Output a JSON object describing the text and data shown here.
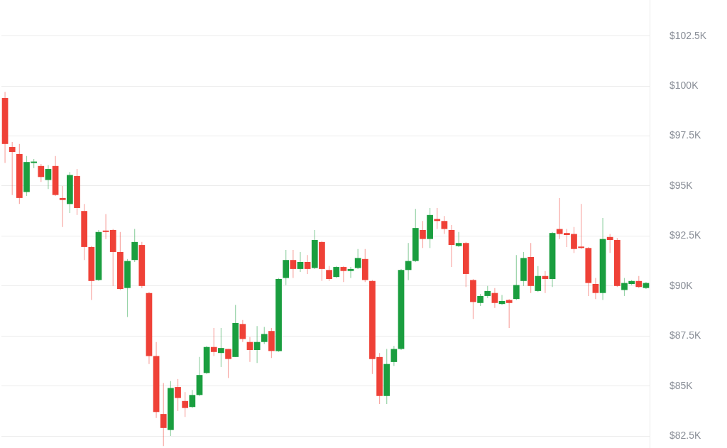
{
  "chart_data": {
    "type": "candlestick",
    "categories": [
      null,
      null,
      null,
      null,
      null,
      null,
      null,
      null,
      null,
      null,
      null,
      null,
      null,
      null,
      null,
      null,
      null,
      null,
      null,
      null,
      null,
      null,
      null,
      null,
      null,
      null,
      null,
      null,
      null,
      null,
      null,
      null,
      null,
      null,
      null,
      null,
      null,
      null,
      null,
      null,
      null,
      null,
      null,
      null,
      null,
      null,
      null,
      null,
      null,
      null,
      null,
      null,
      null,
      null,
      null,
      null,
      null,
      null,
      null,
      null,
      null,
      null,
      null,
      null,
      null,
      null,
      null,
      null,
      null,
      null,
      null,
      null,
      null,
      null,
      null,
      null,
      null,
      null,
      null,
      null,
      null,
      null,
      null,
      null,
      null,
      null,
      null,
      null,
      null,
      null
    ],
    "ohlc": [
      [
        99400,
        99700,
        96150,
        97100
      ],
      [
        96950,
        97200,
        94550,
        96700
      ],
      [
        96600,
        97100,
        94100,
        94400
      ],
      [
        94700,
        96500,
        94500,
        96200
      ],
      [
        96150,
        96350,
        95900,
        96200
      ],
      [
        96000,
        96100,
        95200,
        95450
      ],
      [
        95300,
        96050,
        94850,
        95850
      ],
      [
        96000,
        96500,
        94500,
        94550
      ],
      [
        94400,
        95000,
        92950,
        94300
      ],
      [
        94100,
        95700,
        93650,
        95550
      ],
      [
        95500,
        95850,
        93550,
        93900
      ],
      [
        93750,
        94100,
        91300,
        91950
      ],
      [
        91950,
        92000,
        89300,
        90250
      ],
      [
        90300,
        92800,
        90250,
        92700
      ],
      [
        92750,
        93600,
        92350,
        92700
      ],
      [
        92800,
        92850,
        90000,
        91700
      ],
      [
        91700,
        92700,
        89800,
        89850
      ],
      [
        89900,
        91350,
        88450,
        91250
      ],
      [
        91300,
        92850,
        91200,
        92200
      ],
      [
        92050,
        92200,
        89900,
        90000
      ],
      [
        89650,
        89700,
        86100,
        86500
      ],
      [
        86500,
        87200,
        83400,
        83700
      ],
      [
        83600,
        85150,
        82000,
        82900
      ],
      [
        82800,
        85250,
        82500,
        84900
      ],
      [
        84950,
        85350,
        83750,
        84400
      ],
      [
        84250,
        84700,
        83450,
        83900
      ],
      [
        83950,
        84800,
        83900,
        84550
      ],
      [
        84550,
        86450,
        84500,
        85550
      ],
      [
        85650,
        87000,
        85600,
        86950
      ],
      [
        86950,
        87900,
        86500,
        86700
      ],
      [
        86650,
        87900,
        85950,
        86900
      ],
      [
        86850,
        86850,
        85400,
        86350
      ],
      [
        86450,
        89050,
        86450,
        88150
      ],
      [
        88100,
        88300,
        87200,
        87350
      ],
      [
        87200,
        87450,
        86200,
        86800
      ],
      [
        86800,
        88000,
        86150,
        87200
      ],
      [
        87200,
        87950,
        87100,
        87600
      ],
      [
        87750,
        87900,
        86400,
        86750
      ],
      [
        86750,
        90400,
        86700,
        90350
      ],
      [
        90400,
        91800,
        90050,
        91300
      ],
      [
        91300,
        91800,
        90400,
        90850
      ],
      [
        90850,
        91700,
        90700,
        91200
      ],
      [
        91200,
        91550,
        90600,
        90850
      ],
      [
        90900,
        92800,
        90850,
        92300
      ],
      [
        92200,
        92250,
        90250,
        90850
      ],
      [
        90800,
        91000,
        90250,
        90350
      ],
      [
        90450,
        91000,
        90400,
        90950
      ],
      [
        90950,
        91000,
        90200,
        90750
      ],
      [
        90750,
        90950,
        90400,
        90850
      ],
      [
        90900,
        91850,
        90850,
        91400
      ],
      [
        91350,
        91850,
        90200,
        90300
      ],
      [
        90250,
        90300,
        85600,
        86350
      ],
      [
        86450,
        86650,
        84100,
        84500
      ],
      [
        84500,
        86850,
        84100,
        86100
      ],
      [
        86200,
        87000,
        86000,
        86850
      ],
      [
        86850,
        90850,
        86800,
        90800
      ],
      [
        90800,
        92150,
        90300,
        91250
      ],
      [
        91250,
        93850,
        91200,
        92900
      ],
      [
        92800,
        93250,
        91900,
        92350
      ],
      [
        92350,
        93900,
        91900,
        93550
      ],
      [
        93350,
        93900,
        92850,
        93250
      ],
      [
        93250,
        93500,
        92600,
        92850
      ],
      [
        92800,
        93050,
        90950,
        92050
      ],
      [
        92000,
        92700,
        91950,
        92150
      ],
      [
        92150,
        92200,
        89950,
        90600
      ],
      [
        90300,
        90350,
        88350,
        89200
      ],
      [
        89150,
        89600,
        89000,
        89500
      ],
      [
        89500,
        90000,
        89400,
        89750
      ],
      [
        89650,
        89900,
        88900,
        89150
      ],
      [
        89100,
        89550,
        89050,
        89250
      ],
      [
        89300,
        89350,
        87900,
        89150
      ],
      [
        89350,
        91550,
        89300,
        90050
      ],
      [
        90250,
        91700,
        90000,
        91400
      ],
      [
        91450,
        92150,
        89650,
        90000
      ],
      [
        89750,
        91000,
        89700,
        90500
      ],
      [
        90500,
        90750,
        89650,
        90350
      ],
      [
        90350,
        92700,
        89950,
        92650
      ],
      [
        92850,
        94400,
        92350,
        92600
      ],
      [
        92650,
        92850,
        91950,
        92550
      ],
      [
        92600,
        92950,
        91650,
        91850
      ],
      [
        91950,
        94100,
        91850,
        91900
      ],
      [
        91900,
        91950,
        89500,
        90150
      ],
      [
        90100,
        90400,
        89350,
        89650
      ],
      [
        89650,
        93400,
        89300,
        92350
      ],
      [
        92450,
        92600,
        91650,
        92300
      ],
      [
        92300,
        92400,
        89950,
        90000
      ],
      [
        89800,
        90400,
        89500,
        90150
      ],
      [
        90100,
        90300,
        90050,
        90250
      ],
      [
        90250,
        90500,
        89900,
        89950
      ],
      [
        89900,
        90200,
        89850,
        90150
      ]
    ],
    "colors": [
      "#ef4137",
      "#ef4137",
      "#ef4137",
      "#1a9e3f",
      "#1a9e3f",
      "#ef4137",
      "#1a9e3f",
      "#ef4137",
      "#ef4137",
      "#1a9e3f",
      "#ef4137",
      "#ef4137",
      "#ef4137",
      "#1a9e3f",
      "#ef4137",
      "#ef4137",
      "#ef4137",
      "#1a9e3f",
      "#1a9e3f",
      "#ef4137",
      "#ef4137",
      "#ef4137",
      "#ef4137",
      "#1a9e3f",
      "#ef4137",
      "#ef4137",
      "#1a9e3f",
      "#1a9e3f",
      "#1a9e3f",
      "#ef4137",
      "#1a9e3f",
      "#ef4137",
      "#1a9e3f",
      "#ef4137",
      "#ef4137",
      "#1a9e3f",
      "#1a9e3f",
      "#ef4137",
      "#1a9e3f",
      "#1a9e3f",
      "#ef4137",
      "#1a9e3f",
      "#ef4137",
      "#1a9e3f",
      "#ef4137",
      "#ef4137",
      "#1a9e3f",
      "#ef4137",
      "#1a9e3f",
      "#1a9e3f",
      "#ef4137",
      "#ef4137",
      "#ef4137",
      "#1a9e3f",
      "#1a9e3f",
      "#1a9e3f",
      "#1a9e3f",
      "#1a9e3f",
      "#ef4137",
      "#1a9e3f",
      "#ef4137",
      "#ef4137",
      "#ef4137",
      "#1a9e3f",
      "#ef4137",
      "#ef4137",
      "#1a9e3f",
      "#1a9e3f",
      "#ef4137",
      "#1a9e3f",
      "#ef4137",
      "#1a9e3f",
      "#1a9e3f",
      "#ef4137",
      "#1a9e3f",
      "#ef4137",
      "#1a9e3f",
      "#ef4137",
      "#ef4137",
      "#ef4137",
      "#ef4137",
      "#ef4137",
      "#ef4137",
      "#1a9e3f",
      "#ef4137",
      "#ef4137",
      "#1a9e3f",
      "#1a9e3f",
      "#ef4137",
      "#1a9e3f"
    ],
    "ylim": [
      81900,
      104300
    ],
    "yticks": [
      {
        "value": 82500,
        "label": "$82.5K"
      },
      {
        "value": 85000,
        "label": "$85K"
      },
      {
        "value": 87500,
        "label": "$87.5K"
      },
      {
        "value": 90000,
        "label": "$90K"
      },
      {
        "value": 92500,
        "label": "$92.5K"
      },
      {
        "value": 95000,
        "label": "$95K"
      },
      {
        "value": 97500,
        "label": "$97.5K"
      },
      {
        "value": 100000,
        "label": "$100K"
      },
      {
        "value": 102500,
        "label": "$102.5K"
      }
    ],
    "grid": "y",
    "tick_labels": "y"
  }
}
